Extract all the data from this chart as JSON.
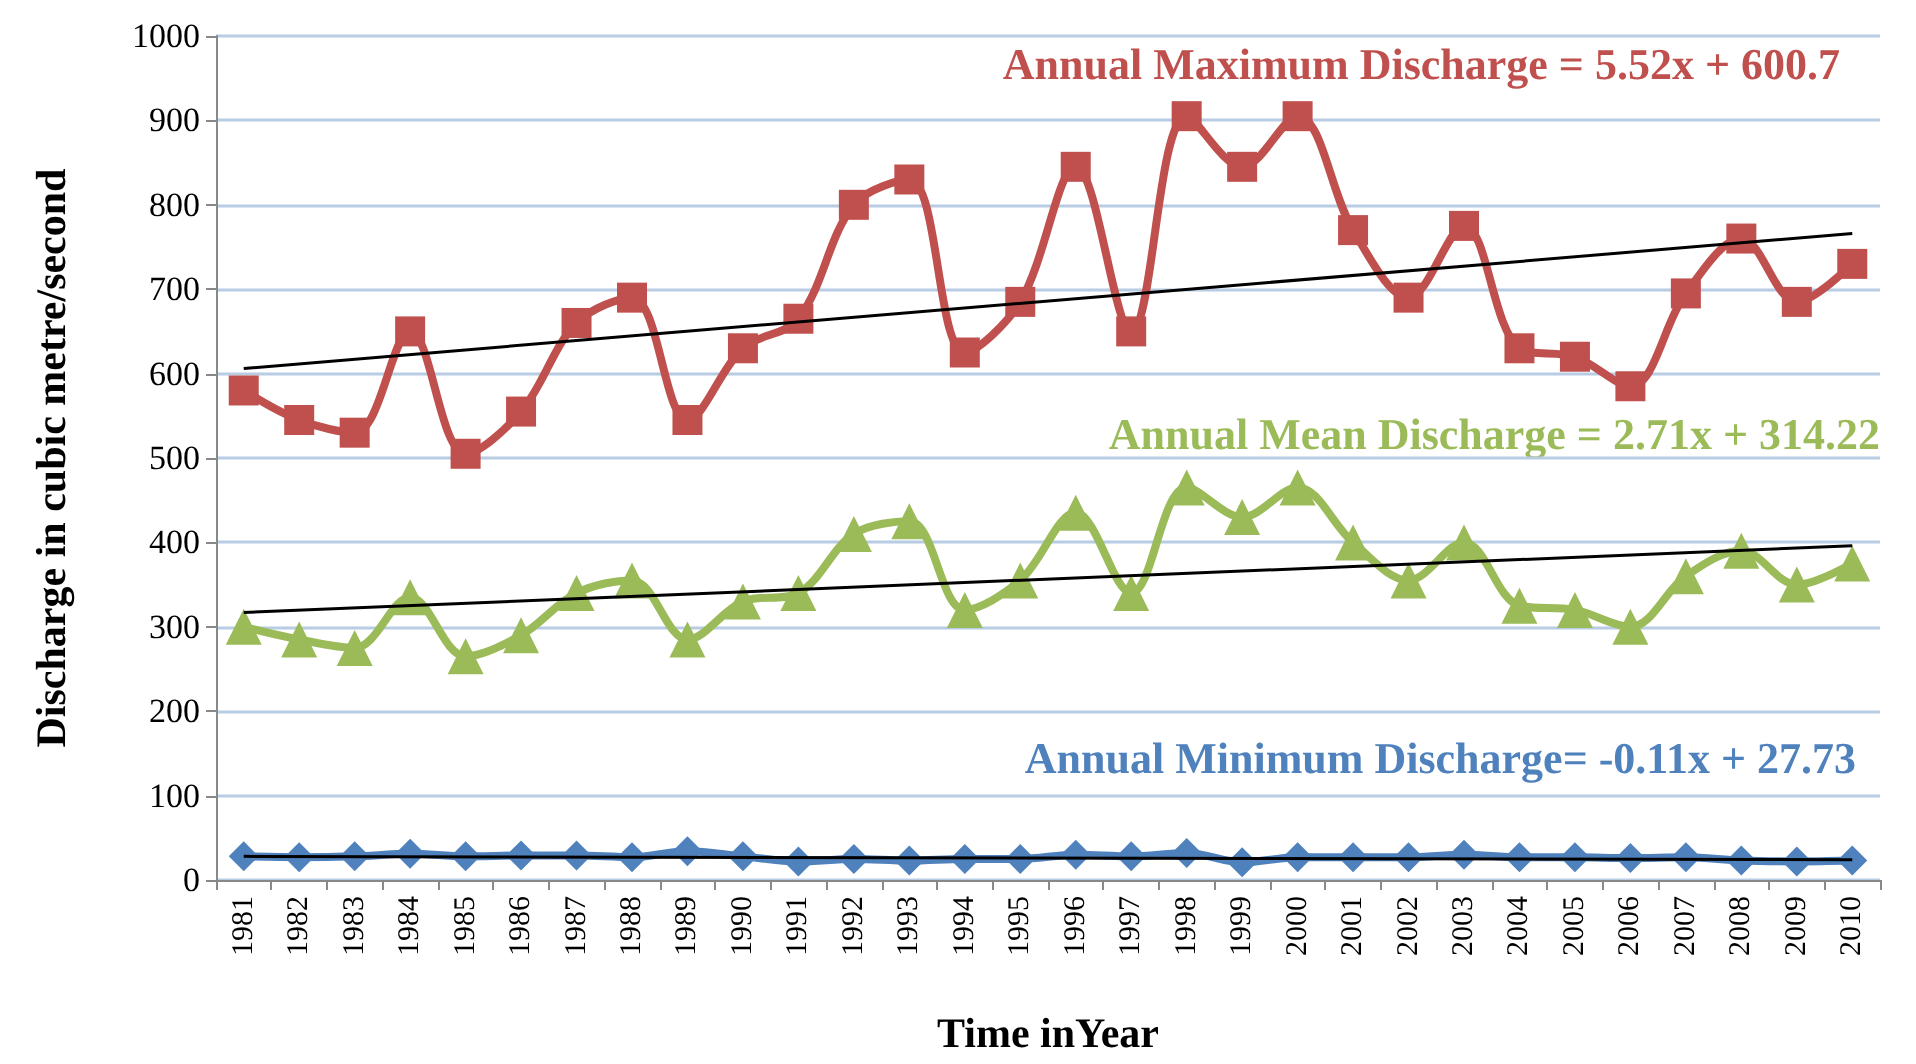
{
  "chart_data": {
    "type": "line",
    "xlabel": "Time inYear",
    "ylabel": "Discharge in cubic metre/second",
    "categories": [
      "1981",
      "1982",
      "1983",
      "1984",
      "1985",
      "1986",
      "1987",
      "1988",
      "1989",
      "1990",
      "1991",
      "1992",
      "1993",
      "1994",
      "1995",
      "1996",
      "1997",
      "1998",
      "1999",
      "2000",
      "2001",
      "2002",
      "2003",
      "2004",
      "2005",
      "2006",
      "2007",
      "2008",
      "2009",
      "2010"
    ],
    "series": [
      {
        "color": "#c0504d",
        "marker": "square",
        "values": [
          580,
          545,
          530,
          650,
          505,
          555,
          660,
          690,
          545,
          630,
          665,
          800,
          830,
          625,
          685,
          845,
          650,
          905,
          845,
          905,
          770,
          690,
          775,
          630,
          620,
          585,
          695,
          760,
          685,
          730
        ]
      },
      {
        "color": "#9bbb59",
        "marker": "triangle",
        "values": [
          300,
          285,
          275,
          335,
          265,
          290,
          340,
          355,
          285,
          330,
          340,
          410,
          425,
          320,
          355,
          435,
          340,
          465,
          430,
          465,
          400,
          355,
          400,
          325,
          320,
          300,
          360,
          390,
          350,
          375
        ]
      },
      {
        "color": "#4f81bd",
        "marker": "diamond",
        "values": [
          28,
          27,
          28,
          31,
          28,
          29,
          29,
          27,
          34,
          28,
          22,
          25,
          23,
          25,
          25,
          30,
          28,
          32,
          21,
          27,
          27,
          27,
          30,
          27,
          27,
          26,
          27,
          23,
          22,
          23
        ]
      },
      {
        "type": "line",
        "color": "#000000",
        "marker": "none",
        "values": [
          606,
          null,
          null,
          null,
          null,
          null,
          null,
          null,
          null,
          null,
          null,
          null,
          null,
          null,
          null,
          null,
          null,
          null,
          null,
          null,
          null,
          null,
          null,
          null,
          null,
          null,
          null,
          null,
          null,
          766
        ]
      },
      {
        "type": "line",
        "color": "#000000",
        "marker": "none",
        "values": [
          317,
          null,
          null,
          null,
          null,
          null,
          null,
          null,
          null,
          null,
          null,
          null,
          null,
          null,
          null,
          null,
          null,
          null,
          null,
          null,
          null,
          null,
          null,
          null,
          null,
          null,
          null,
          null,
          null,
          396
        ]
      },
      {
        "type": "line",
        "color": "#000000",
        "marker": "none",
        "values": [
          28,
          null,
          null,
          null,
          null,
          null,
          null,
          null,
          null,
          null,
          null,
          null,
          null,
          null,
          null,
          null,
          null,
          null,
          null,
          null,
          null,
          null,
          null,
          null,
          null,
          null,
          null,
          null,
          null,
          24
        ]
      }
    ],
    "annotations": [
      "Annual Maximum Discharge = 5.52x + 600.7",
      "Annual Mean Discharge = 2.71x + 314.22",
      "Annual Minimum Discharge= -0.11x + 27.73"
    ],
    "ylim": [
      0,
      1000
    ],
    "yticks": [
      0,
      100,
      200,
      300,
      400,
      500,
      600,
      700,
      800,
      900,
      1000
    ],
    "grid": "y"
  }
}
